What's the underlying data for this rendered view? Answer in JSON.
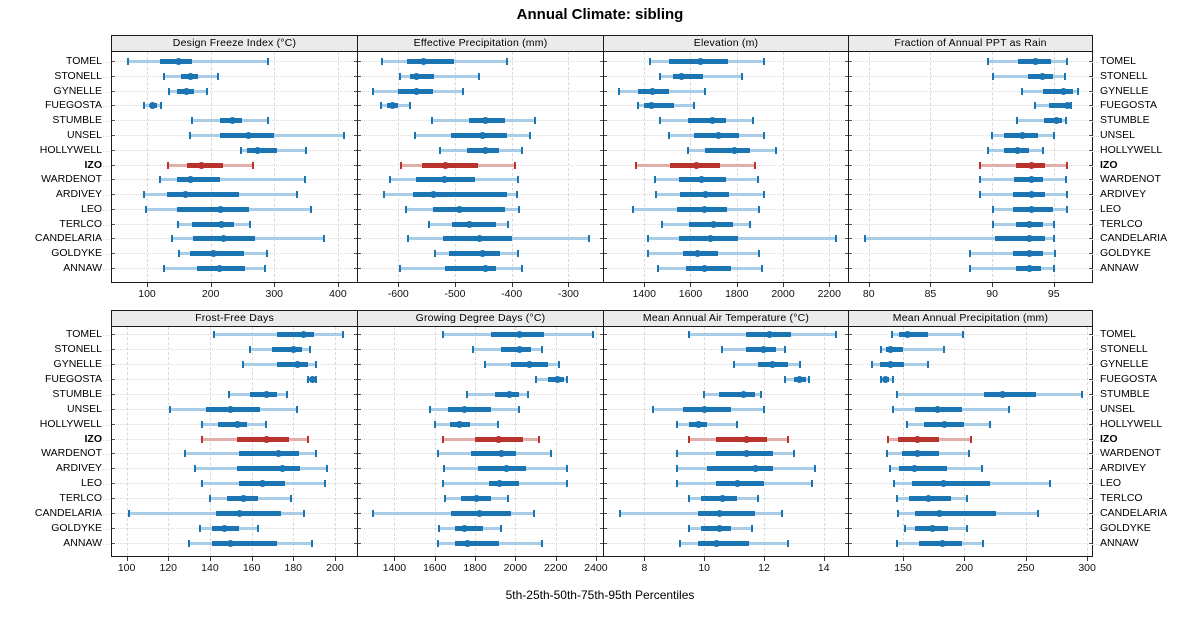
{
  "title": "Annual Climate: sibling",
  "xlabel": "5th-25th-50th-75th-95th Percentiles",
  "highlight_station": "IZO",
  "colors": {
    "series_blue": "#1b75b3",
    "series_blue_band": "#a9cde6",
    "highlight_red": "#b9322c",
    "highlight_red_band": "#e2aeab",
    "strip_bg": "#ebebeb",
    "grid": "#d9d9d9",
    "border": "#1a1a1a"
  },
  "chart_data": {
    "type": "dotplot-percentiles",
    "percentile_levels": [
      5,
      25,
      50,
      75,
      95
    ],
    "stations": [
      "TOMEL",
      "STONELL",
      "GYNELLE",
      "FUEGOSTA",
      "STUMBLE",
      "UNSEL",
      "HOLLYWELL",
      "IZO",
      "WARDENOT",
      "ARDIVEY",
      "LEO",
      "TERLCO",
      "CANDELARIA",
      "GOLDYKE",
      "ANNAW"
    ],
    "panels": [
      {
        "title": "Design Freeze Index (°C)",
        "row": 0,
        "col": 0,
        "xlim": [
          45,
          430
        ],
        "ticks": [
          100,
          200,
          300,
          400
        ],
        "values": [
          [
            70,
            120,
            150,
            170,
            290
          ],
          [
            127,
            153,
            168,
            180,
            212
          ],
          [
            135,
            147,
            162,
            174,
            194
          ],
          [
            95,
            104,
            109,
            116,
            122
          ],
          [
            170,
            214,
            234,
            250,
            290
          ],
          [
            168,
            215,
            259,
            300,
            410
          ],
          [
            247,
            257,
            274,
            305,
            350
          ],
          [
            133,
            163,
            185,
            220,
            267
          ],
          [
            120,
            147,
            168,
            215,
            348
          ],
          [
            95,
            132,
            160,
            245,
            336
          ],
          [
            98,
            147,
            215,
            260,
            357
          ],
          [
            148,
            170,
            217,
            236,
            262
          ],
          [
            140,
            172,
            220,
            270,
            378
          ],
          [
            150,
            167,
            205,
            252,
            289
          ],
          [
            126,
            179,
            214,
            254,
            286
          ]
        ]
      },
      {
        "title": "Effective Precipitation (mm)",
        "row": 0,
        "col": 1,
        "xlim": [
          -671,
          -239
        ],
        "ticks": [
          -600,
          -500,
          -400,
          -300
        ],
        "values": [
          [
            -628,
            -585,
            -556,
            -501,
            -409
          ],
          [
            -597,
            -580,
            -567,
            -537,
            -457
          ],
          [
            -645,
            -600,
            -567,
            -538,
            -486
          ],
          [
            -630,
            -620,
            -610,
            -600,
            -580
          ],
          [
            -540,
            -476,
            -446,
            -412,
            -359
          ],
          [
            -570,
            -507,
            -451,
            -408,
            -368
          ],
          [
            -526,
            -479,
            -446,
            -422,
            -382
          ],
          [
            -595,
            -559,
            -516,
            -459,
            -394
          ],
          [
            -615,
            -568,
            -518,
            -464,
            -388
          ],
          [
            -625,
            -574,
            -537,
            -408,
            -390
          ],
          [
            -587,
            -538,
            -492,
            -412,
            -387
          ],
          [
            -546,
            -506,
            -475,
            -428,
            -406
          ],
          [
            -583,
            -522,
            -457,
            -400,
            -263
          ],
          [
            -536,
            -511,
            -451,
            -421,
            -388
          ],
          [
            -597,
            -518,
            -447,
            -427,
            -381
          ]
        ]
      },
      {
        "title": "Elevation (m)",
        "row": 0,
        "col": 2,
        "xlim": [
          1226,
          2281
        ],
        "ticks": [
          1400,
          1600,
          1800,
          2000,
          2200
        ],
        "values": [
          [
            1426,
            1508,
            1642,
            1763,
            1916
          ],
          [
            1470,
            1523,
            1561,
            1652,
            1821
          ],
          [
            1292,
            1374,
            1436,
            1508,
            1662
          ],
          [
            1371,
            1397,
            1432,
            1527,
            1613
          ],
          [
            1470,
            1590,
            1695,
            1753,
            1869
          ],
          [
            1508,
            1613,
            1720,
            1811,
            1916
          ],
          [
            1590,
            1662,
            1792,
            1858,
            1970
          ],
          [
            1364,
            1512,
            1628,
            1729,
            1879
          ],
          [
            1446,
            1551,
            1648,
            1753,
            1893
          ],
          [
            1450,
            1556,
            1667,
            1768,
            1916
          ],
          [
            1350,
            1541,
            1662,
            1758,
            1897
          ],
          [
            1475,
            1595,
            1700,
            1782,
            1858
          ],
          [
            1417,
            1551,
            1686,
            1807,
            2229
          ],
          [
            1417,
            1566,
            1631,
            1720,
            1897
          ],
          [
            1461,
            1580,
            1662,
            1775,
            1908
          ]
        ]
      },
      {
        "title": "Fraction of Annual PPT as Rain",
        "row": 0,
        "col": 3,
        "xlim": [
          78.4,
          98.1
        ],
        "ticks": [
          80,
          85,
          90,
          95
        ],
        "values": [
          [
            89.7,
            92.1,
            93.5,
            94.8,
            96.1
          ],
          [
            90.1,
            92.9,
            94.1,
            94.9,
            95.9
          ],
          [
            92.4,
            94.1,
            95.8,
            96.6,
            97.0
          ],
          [
            93.5,
            94.6,
            96.1,
            96.2,
            96.4
          ],
          [
            92.0,
            94.2,
            95.2,
            95.7,
            96.0
          ],
          [
            90.0,
            91.0,
            92.5,
            93.7,
            95.0
          ],
          [
            89.7,
            91.0,
            92.1,
            93.0,
            94.1
          ],
          [
            89.0,
            91.9,
            93.2,
            94.3,
            96.1
          ],
          [
            89.0,
            91.8,
            93.2,
            94.1,
            96.0
          ],
          [
            89.0,
            91.7,
            93.2,
            94.3,
            96.1
          ],
          [
            90.1,
            91.7,
            93.2,
            94.9,
            96.1
          ],
          [
            90.1,
            91.9,
            93.0,
            94.1,
            95.0
          ],
          [
            79.7,
            90.2,
            93.0,
            94.3,
            95.0
          ],
          [
            88.2,
            91.7,
            93.0,
            94.1,
            95.1
          ],
          [
            88.2,
            91.9,
            93.0,
            94.0,
            95.0
          ]
        ]
      },
      {
        "title": "Frost-Free Days",
        "row": 1,
        "col": 0,
        "xlim": [
          93,
          210.6
        ],
        "ticks": [
          100,
          120,
          140,
          160,
          180,
          200
        ],
        "values": [
          [
            142,
            172,
            185,
            190,
            204
          ],
          [
            159,
            170,
            180,
            184,
            188
          ],
          [
            156,
            172,
            182,
            187,
            191
          ],
          [
            187,
            188,
            189,
            190,
            191
          ],
          [
            149,
            159,
            167,
            172,
            177
          ],
          [
            121,
            138,
            150,
            164,
            182
          ],
          [
            136,
            144,
            153,
            158,
            167
          ],
          [
            136,
            153,
            167,
            178,
            187
          ],
          [
            128,
            154,
            173,
            183,
            191
          ],
          [
            133,
            153,
            175,
            183,
            196
          ],
          [
            136,
            154,
            165,
            176,
            195
          ],
          [
            140,
            148,
            156,
            163,
            179
          ],
          [
            101,
            143,
            154,
            174,
            185
          ],
          [
            135,
            141,
            147,
            154,
            163
          ],
          [
            130,
            141,
            150,
            172,
            189
          ]
        ]
      },
      {
        "title": "Growing Degree Days (°C)",
        "row": 1,
        "col": 1,
        "xlim": [
          1219,
          2435
        ],
        "ticks": [
          1400,
          1600,
          1800,
          2000,
          2200,
          2400
        ],
        "values": [
          [
            1640,
            1880,
            2020,
            2140,
            2385
          ],
          [
            1790,
            1930,
            2020,
            2080,
            2130
          ],
          [
            1850,
            1980,
            2070,
            2160,
            2215
          ],
          [
            2100,
            2160,
            2210,
            2240,
            2255
          ],
          [
            1760,
            1900,
            1970,
            2020,
            2065
          ],
          [
            1575,
            1665,
            1750,
            1880,
            2020
          ],
          [
            1600,
            1677,
            1722,
            1777,
            1915
          ],
          [
            1640,
            1800,
            1915,
            2040,
            2115
          ],
          [
            1616,
            1782,
            1930,
            2005,
            2176
          ],
          [
            1644,
            1815,
            1955,
            2054,
            2254
          ],
          [
            1640,
            1870,
            1920,
            2020,
            2254
          ],
          [
            1650,
            1730,
            1805,
            1880,
            1965
          ],
          [
            1295,
            1682,
            1822,
            1980,
            2093
          ],
          [
            1623,
            1700,
            1750,
            1840,
            1930
          ],
          [
            1616,
            1700,
            1760,
            1920,
            2130
          ]
        ]
      },
      {
        "title": "Mean Annual Air Temperature (°C)",
        "row": 1,
        "col": 2,
        "xlim": [
          6.65,
          14.81
        ],
        "ticks": [
          8,
          10,
          12,
          14
        ],
        "values": [
          [
            9.5,
            11.4,
            12.2,
            12.9,
            14.4
          ],
          [
            10.6,
            11.4,
            12.0,
            12.4,
            12.7
          ],
          [
            11.0,
            11.8,
            12.3,
            12.8,
            13.2
          ],
          [
            12.7,
            13.0,
            13.2,
            13.4,
            13.5
          ],
          [
            10.0,
            10.5,
            11.3,
            11.7,
            11.9
          ],
          [
            8.3,
            9.3,
            10.0,
            10.9,
            12.0
          ],
          [
            9.1,
            9.5,
            9.8,
            10.1,
            11.1
          ],
          [
            9.5,
            10.4,
            11.4,
            12.1,
            12.8
          ],
          [
            9.1,
            10.4,
            11.4,
            12.3,
            13.0
          ],
          [
            9.1,
            10.1,
            11.7,
            12.3,
            13.7
          ],
          [
            9.1,
            10.4,
            11.1,
            12.0,
            13.6
          ],
          [
            9.5,
            9.9,
            10.6,
            11.1,
            11.8
          ],
          [
            7.2,
            9.8,
            10.5,
            11.7,
            12.6
          ],
          [
            9.5,
            9.9,
            10.5,
            10.9,
            11.6
          ],
          [
            9.2,
            9.8,
            10.4,
            11.5,
            12.8
          ]
        ]
      },
      {
        "title": "Mean Annual Precipitation (mm)",
        "row": 1,
        "col": 3,
        "xlim": [
          106,
          304
        ],
        "ticks": [
          150,
          200,
          250,
          300
        ],
        "values": [
          [
            141,
            147,
            154,
            170,
            199
          ],
          [
            132,
            136,
            140,
            150,
            183
          ],
          [
            125,
            131,
            140,
            151,
            170
          ],
          [
            132,
            134,
            136,
            139,
            142
          ],
          [
            145,
            216,
            231,
            258,
            296
          ],
          [
            142,
            160,
            178,
            198,
            236
          ],
          [
            153,
            167,
            184,
            200,
            221
          ],
          [
            138,
            146,
            162,
            179,
            205
          ],
          [
            137,
            149,
            162,
            179,
            204
          ],
          [
            139,
            147,
            159,
            186,
            214
          ],
          [
            143,
            157,
            183,
            221,
            270
          ],
          [
            145,
            155,
            171,
            189,
            202
          ],
          [
            146,
            160,
            180,
            226,
            260
          ],
          [
            152,
            160,
            174,
            187,
            202
          ],
          [
            145,
            163,
            182,
            198,
            215
          ]
        ]
      }
    ]
  }
}
